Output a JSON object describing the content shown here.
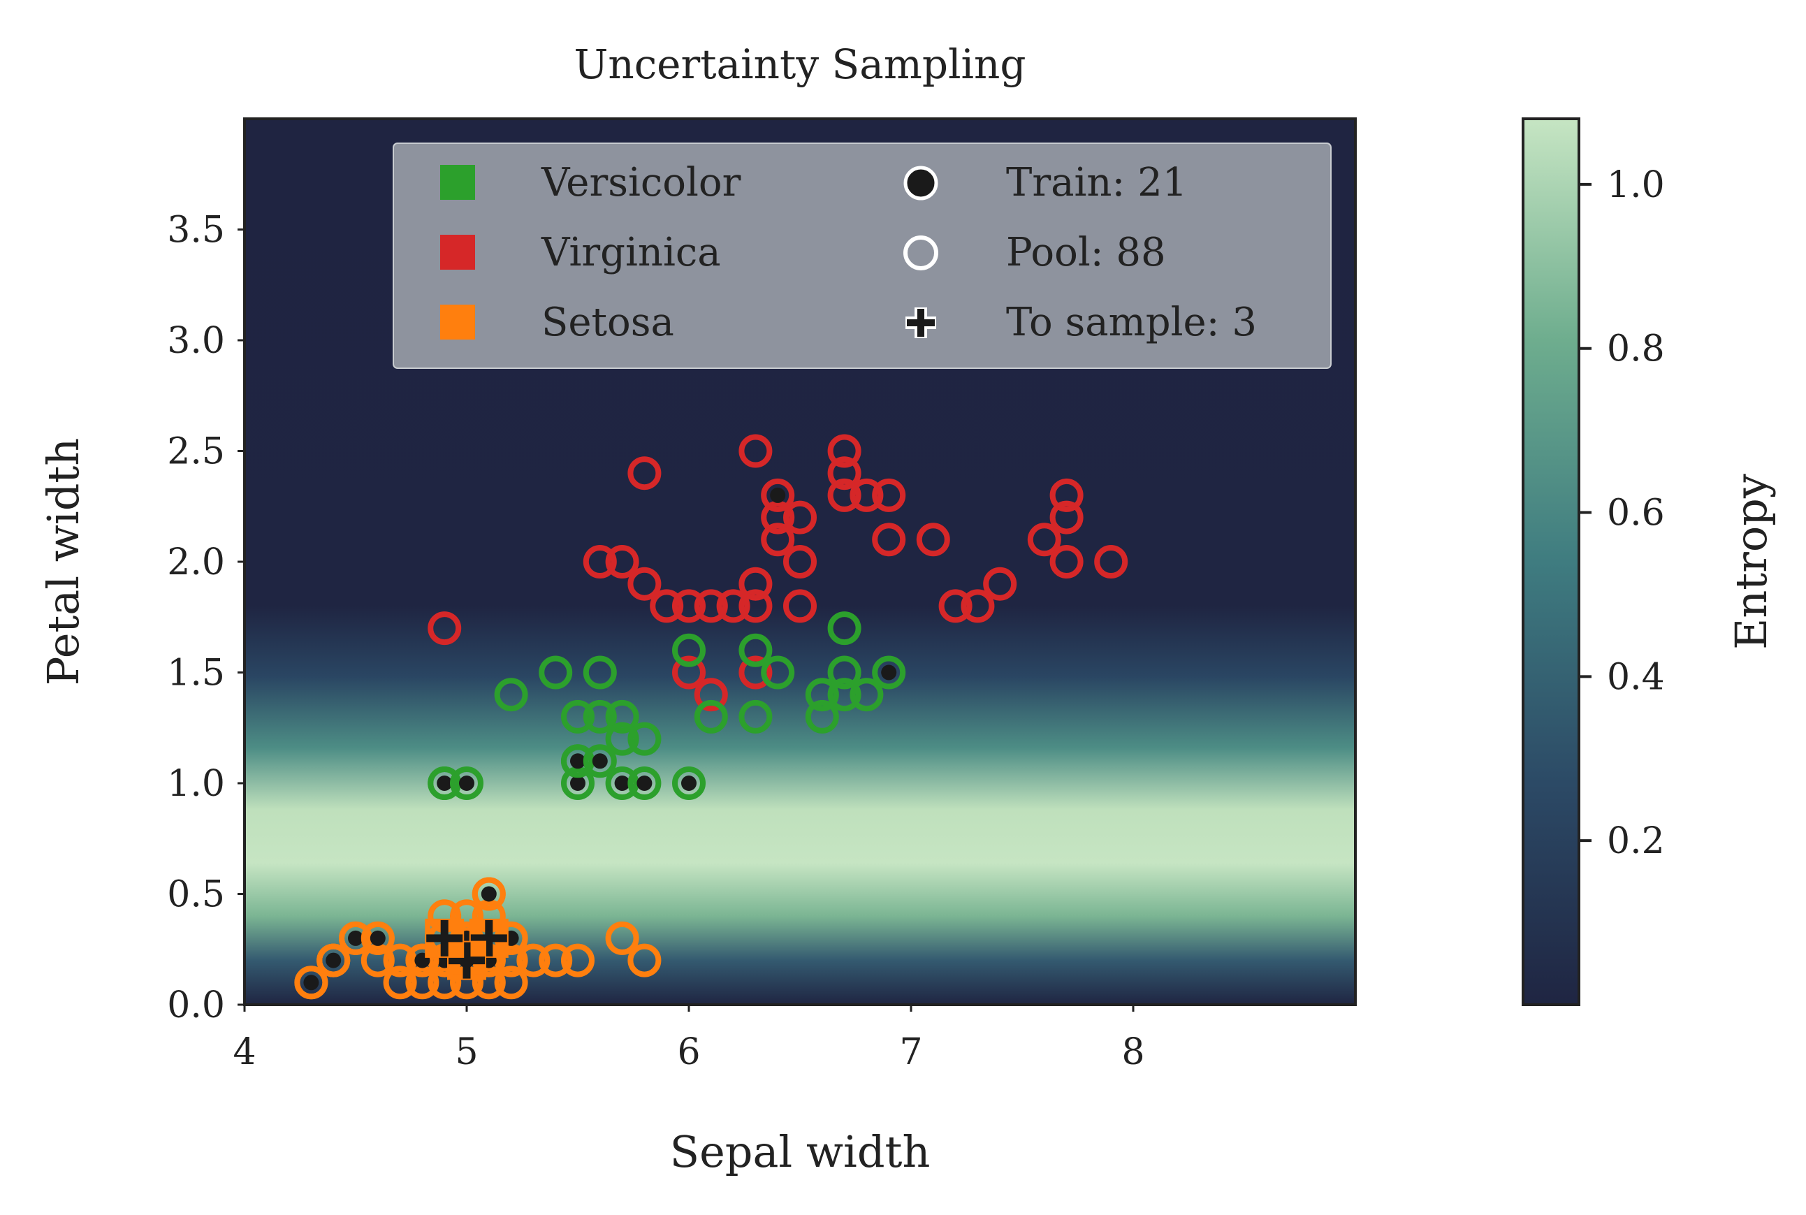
{
  "chart_data": {
    "type": "scatter",
    "title": "Uncertainty Sampling",
    "xlabel": "Sepal width",
    "ylabel": "Petal width",
    "xlim": [
      4,
      9
    ],
    "ylim": [
      0,
      4
    ],
    "xticks": [
      "4",
      "5",
      "6",
      "7",
      "8"
    ],
    "yticks": [
      "0.0",
      "0.5",
      "1.0",
      "1.5",
      "2.0",
      "2.5",
      "3.0",
      "3.5"
    ],
    "grid": false,
    "background": "entropy heatmap",
    "colorbar": {
      "label": "Entropy",
      "ticks": [
        "0.2",
        "0.4",
        "0.6",
        "0.8",
        "1.0"
      ],
      "range": [
        0.0,
        1.08
      ],
      "colors": [
        "#1f2542",
        "#2c4a66",
        "#3f7c80",
        "#6ead8e",
        "#c6e5c3"
      ]
    },
    "legend": {
      "position": "top-center",
      "classes": [
        {
          "label": "Versicolor",
          "color": "#2ca02c"
        },
        {
          "label": "Virginica",
          "color": "#d62728"
        },
        {
          "label": "Setosa",
          "color": "#ff7f0e"
        }
      ],
      "sets": [
        {
          "label": "Train: 21",
          "marker": "filled-dot"
        },
        {
          "label": "Pool: 88",
          "marker": "hollow-circle"
        },
        {
          "label": "To sample: 3",
          "marker": "plus"
        }
      ]
    },
    "series": [
      {
        "name": "Virginica",
        "color": "#d62728",
        "pool": [
          [
            4.9,
            1.7
          ],
          [
            5.6,
            2.0
          ],
          [
            5.7,
            2.0
          ],
          [
            5.8,
            1.9
          ],
          [
            5.8,
            2.4
          ],
          [
            5.9,
            1.8
          ],
          [
            6.0,
            1.8
          ],
          [
            6.1,
            1.8
          ],
          [
            6.2,
            1.8
          ],
          [
            6.3,
            1.8
          ],
          [
            6.3,
            1.9
          ],
          [
            6.3,
            2.5
          ],
          [
            6.4,
            2.1
          ],
          [
            6.4,
            2.2
          ],
          [
            6.5,
            2.0
          ],
          [
            6.5,
            2.2
          ],
          [
            6.5,
            1.8
          ],
          [
            6.7,
            2.5
          ],
          [
            6.7,
            2.4
          ],
          [
            6.7,
            2.3
          ],
          [
            6.8,
            2.3
          ],
          [
            6.9,
            2.3
          ],
          [
            6.9,
            2.1
          ],
          [
            7.1,
            2.1
          ],
          [
            7.2,
            1.8
          ],
          [
            7.3,
            1.8
          ],
          [
            7.4,
            1.9
          ],
          [
            7.6,
            2.1
          ],
          [
            7.7,
            2.3
          ],
          [
            7.7,
            2.2
          ],
          [
            7.7,
            2.0
          ],
          [
            7.9,
            2.0
          ],
          [
            6.0,
            1.5
          ],
          [
            6.1,
            1.4
          ],
          [
            6.3,
            1.5
          ]
        ],
        "train": [
          [
            6.4,
            2.3
          ]
        ]
      },
      {
        "name": "Versicolor",
        "color": "#2ca02c",
        "pool": [
          [
            5.2,
            1.4
          ],
          [
            5.4,
            1.5
          ],
          [
            5.5,
            1.3
          ],
          [
            5.6,
            1.5
          ],
          [
            5.6,
            1.3
          ],
          [
            5.7,
            1.3
          ],
          [
            5.7,
            1.2
          ],
          [
            5.8,
            1.2
          ],
          [
            6.0,
            1.6
          ],
          [
            6.1,
            1.3
          ],
          [
            6.3,
            1.6
          ],
          [
            6.3,
            1.3
          ],
          [
            6.4,
            1.5
          ],
          [
            6.6,
            1.4
          ],
          [
            6.6,
            1.3
          ],
          [
            6.7,
            1.7
          ],
          [
            6.7,
            1.5
          ],
          [
            6.7,
            1.4
          ],
          [
            6.8,
            1.4
          ],
          [
            4.9,
            1.0
          ],
          [
            5.5,
            1.1
          ]
        ],
        "train": [
          [
            4.9,
            1.0
          ],
          [
            5.0,
            1.0
          ],
          [
            5.5,
            1.0
          ],
          [
            5.5,
            1.1
          ],
          [
            5.6,
            1.1
          ],
          [
            5.7,
            1.0
          ],
          [
            5.8,
            1.0
          ],
          [
            6.0,
            1.0
          ],
          [
            6.9,
            1.5
          ]
        ]
      },
      {
        "name": "Setosa",
        "color": "#ff7f0e",
        "pool": [
          [
            4.3,
            0.1
          ],
          [
            4.4,
            0.2
          ],
          [
            4.5,
            0.3
          ],
          [
            4.6,
            0.3
          ],
          [
            4.6,
            0.2
          ],
          [
            4.7,
            0.2
          ],
          [
            4.8,
            0.2
          ],
          [
            4.8,
            0.1
          ],
          [
            4.9,
            0.1
          ],
          [
            4.9,
            0.2
          ],
          [
            5.0,
            0.2
          ],
          [
            5.0,
            0.4
          ],
          [
            5.0,
            0.3
          ],
          [
            5.1,
            0.4
          ],
          [
            5.1,
            0.2
          ],
          [
            5.1,
            0.3
          ],
          [
            5.2,
            0.2
          ],
          [
            5.2,
            0.1
          ],
          [
            5.1,
            0.5
          ],
          [
            5.4,
            0.2
          ],
          [
            5.5,
            0.2
          ],
          [
            5.7,
            0.3
          ],
          [
            5.8,
            0.2
          ],
          [
            4.4,
            0.2
          ],
          [
            5.0,
            0.2
          ],
          [
            4.9,
            0.3
          ],
          [
            5.2,
            0.3
          ],
          [
            5.3,
            0.2
          ],
          [
            5.0,
            0.1
          ],
          [
            4.7,
            0.1
          ],
          [
            4.9,
            0.4
          ],
          [
            5.1,
            0.1
          ]
        ],
        "train": [
          [
            4.3,
            0.1
          ],
          [
            4.4,
            0.2
          ],
          [
            4.5,
            0.3
          ],
          [
            4.6,
            0.3
          ],
          [
            5.1,
            0.5
          ],
          [
            4.9,
            0.2
          ],
          [
            5.0,
            0.3
          ],
          [
            5.2,
            0.3
          ],
          [
            4.8,
            0.2
          ],
          [
            5.1,
            0.2
          ],
          [
            5.0,
            0.2
          ]
        ],
        "to_sample": [
          [
            5.1,
            0.3
          ],
          [
            5.0,
            0.2
          ],
          [
            4.9,
            0.3
          ]
        ]
      }
    ]
  }
}
